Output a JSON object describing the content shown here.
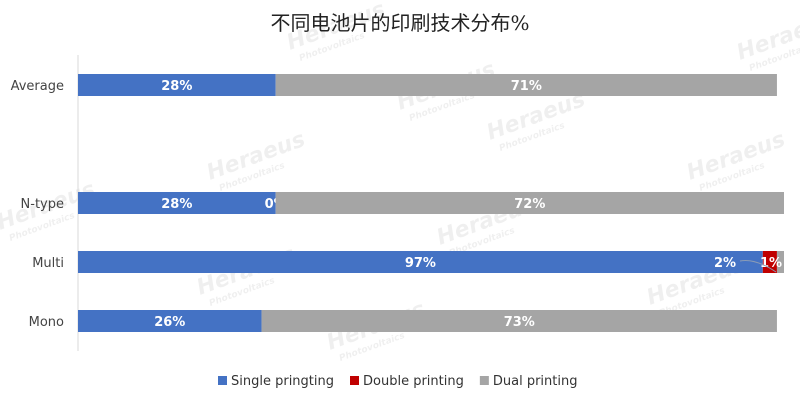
{
  "chart_data": {
    "type": "bar",
    "orientation": "horizontal",
    "stacked": true,
    "title": "不同电池片的印刷技术分布%",
    "categories": [
      "Average",
      "",
      "N-type",
      "Multi",
      "Mono"
    ],
    "series": [
      {
        "name": "Single pringting",
        "color": "#4472C4",
        "values": [
          28,
          null,
          28,
          97,
          26
        ],
        "labels": [
          "28%",
          null,
          "28%",
          "97%",
          "26%"
        ]
      },
      {
        "name": "Double printing",
        "color": "#C00000",
        "values": [
          0,
          null,
          0,
          2,
          0
        ],
        "labels": [
          null,
          null,
          "0%",
          "2%",
          null
        ]
      },
      {
        "name": "Dual printing",
        "color": "#A5A5A5",
        "values": [
          71,
          null,
          72,
          1,
          73
        ],
        "labels": [
          "71%",
          null,
          "72%",
          "1%",
          "73%"
        ]
      }
    ],
    "xlim": [
      0,
      100
    ],
    "x_axis_visible": false,
    "grid": false,
    "legend": "bottom"
  },
  "watermark": {
    "text": "Heraeus",
    "subtext": "Photovoltaics"
  }
}
